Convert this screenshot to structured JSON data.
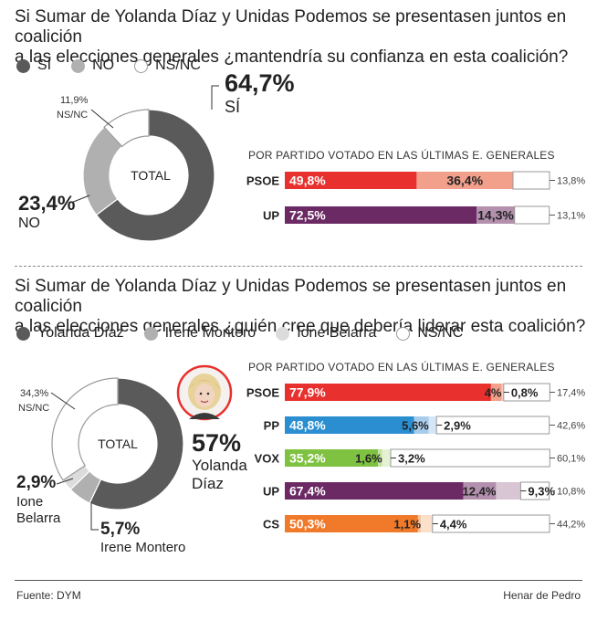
{
  "colors": {
    "dark": "#5a5a5a",
    "mid": "#b0b0b0",
    "light": "#dcdcdc",
    "psoe": "#e8312e",
    "psoe_light": "#f2a08c",
    "pp": "#2a8ed0",
    "pp_light": "#a8cdec",
    "vox": "#7fc242",
    "vox_light": "#c6e2a2",
    "up": "#6b2a64",
    "up_light": "#b390ad",
    "cs": "#f07a2a",
    "cs_light": "#f8c4a0"
  },
  "section1": {
    "question_line1": "Si Sumar de Yolanda Díaz y Unidas Podemos se presentasen juntos en coalición",
    "question_line2": "a las elecciones generales ¿mantendría su confianza en esta coalición?",
    "legend": [
      "SÍ",
      "NO",
      "NS/NC"
    ],
    "donut_center": "TOTAL",
    "big_si_pct": "64,7%",
    "big_si_label": "SÍ",
    "big_no_pct": "23,4%",
    "big_no_label": "NO",
    "small_nsnc_pct": "11,9%",
    "small_nsnc_label": "NS/NC",
    "subtitle": "POR PARTIDO VOTADO EN LAS ÚLTIMAS E. GENERALES"
  },
  "section2": {
    "question_line1": "Si Sumar de Yolanda Díaz y Unidas Podemos se presentasen juntos en coalición",
    "question_line2": "a las elecciones generales ¿quién cree que debería liderar esta coalición?",
    "legend": [
      "Yolanda Díaz",
      "Irene Montero",
      "Ione Belarra",
      "NS/NC"
    ],
    "donut_center": "TOTAL",
    "big_yd_pct": "57%",
    "big_yd_label1": "Yolanda",
    "big_yd_label2": "Díaz",
    "big_ib_pct": "2,9%",
    "big_ib_label1": "Ione",
    "big_ib_label2": "Belarra",
    "big_im_pct": "5,7%",
    "big_im_label": "Irene Montero",
    "small_nsnc_pct": "34,3%",
    "small_nsnc_label": "NS/NC",
    "subtitle": "POR PARTIDO VOTADO EN LAS ÚLTIMAS E. GENERALES"
  },
  "chart_data": [
    {
      "type": "pie",
      "categories": [
        "SÍ",
        "NO",
        "NS/NC"
      ],
      "values": [
        64.7,
        23.4,
        11.9
      ],
      "center_label": "TOTAL"
    },
    {
      "type": "bar",
      "stacked": true,
      "orientation": "horizontal",
      "categories": [
        "PSOE",
        "UP"
      ],
      "series": [
        {
          "name": "SÍ",
          "values": [
            49.8,
            72.5
          ],
          "labels": [
            "49,8%",
            "72,5%"
          ]
        },
        {
          "name": "NO",
          "values": [
            36.4,
            14.3
          ],
          "labels": [
            "36,4%",
            "14,3%"
          ]
        },
        {
          "name": "NS/NC",
          "values": [
            13.8,
            13.1
          ],
          "labels": [
            "13,8%",
            "13,1%"
          ]
        }
      ]
    },
    {
      "type": "pie",
      "categories": [
        "Yolanda Díaz",
        "Irene Montero",
        "Ione Belarra",
        "NS/NC"
      ],
      "values": [
        57,
        5.7,
        2.9,
        34.3
      ],
      "center_label": "TOTAL"
    },
    {
      "type": "bar",
      "stacked": true,
      "orientation": "horizontal",
      "categories": [
        "PSOE",
        "PP",
        "VOX",
        "UP",
        "CS"
      ],
      "series": [
        {
          "name": "Yolanda Díaz",
          "values": [
            77.9,
            48.8,
            35.2,
            67.4,
            50.3
          ],
          "labels": [
            "77,9%",
            "48,8%",
            "35,2%",
            "67,4%",
            "50,3%"
          ]
        },
        {
          "name": "Irene Montero",
          "values": [
            4,
            5.6,
            1.6,
            12.4,
            1.1
          ],
          "labels": [
            "4%",
            "5,6%",
            "1,6%",
            "12,4%",
            "1,1%"
          ]
        },
        {
          "name": "Ione Belarra",
          "values": [
            0.8,
            2.9,
            3.2,
            9.3,
            4.4
          ],
          "labels": [
            "0,8%",
            "2,9%",
            "3,2%",
            "9,3%",
            "4,4%"
          ]
        },
        {
          "name": "NS/NC",
          "values": [
            17.4,
            42.6,
            60.1,
            10.8,
            44.2
          ],
          "labels": [
            "17,4%",
            "42,6%",
            "60,1%",
            "10,8%",
            "44,2%"
          ]
        }
      ]
    }
  ],
  "footer": {
    "source": "Fuente: DYM",
    "author": "Henar de Pedro"
  }
}
